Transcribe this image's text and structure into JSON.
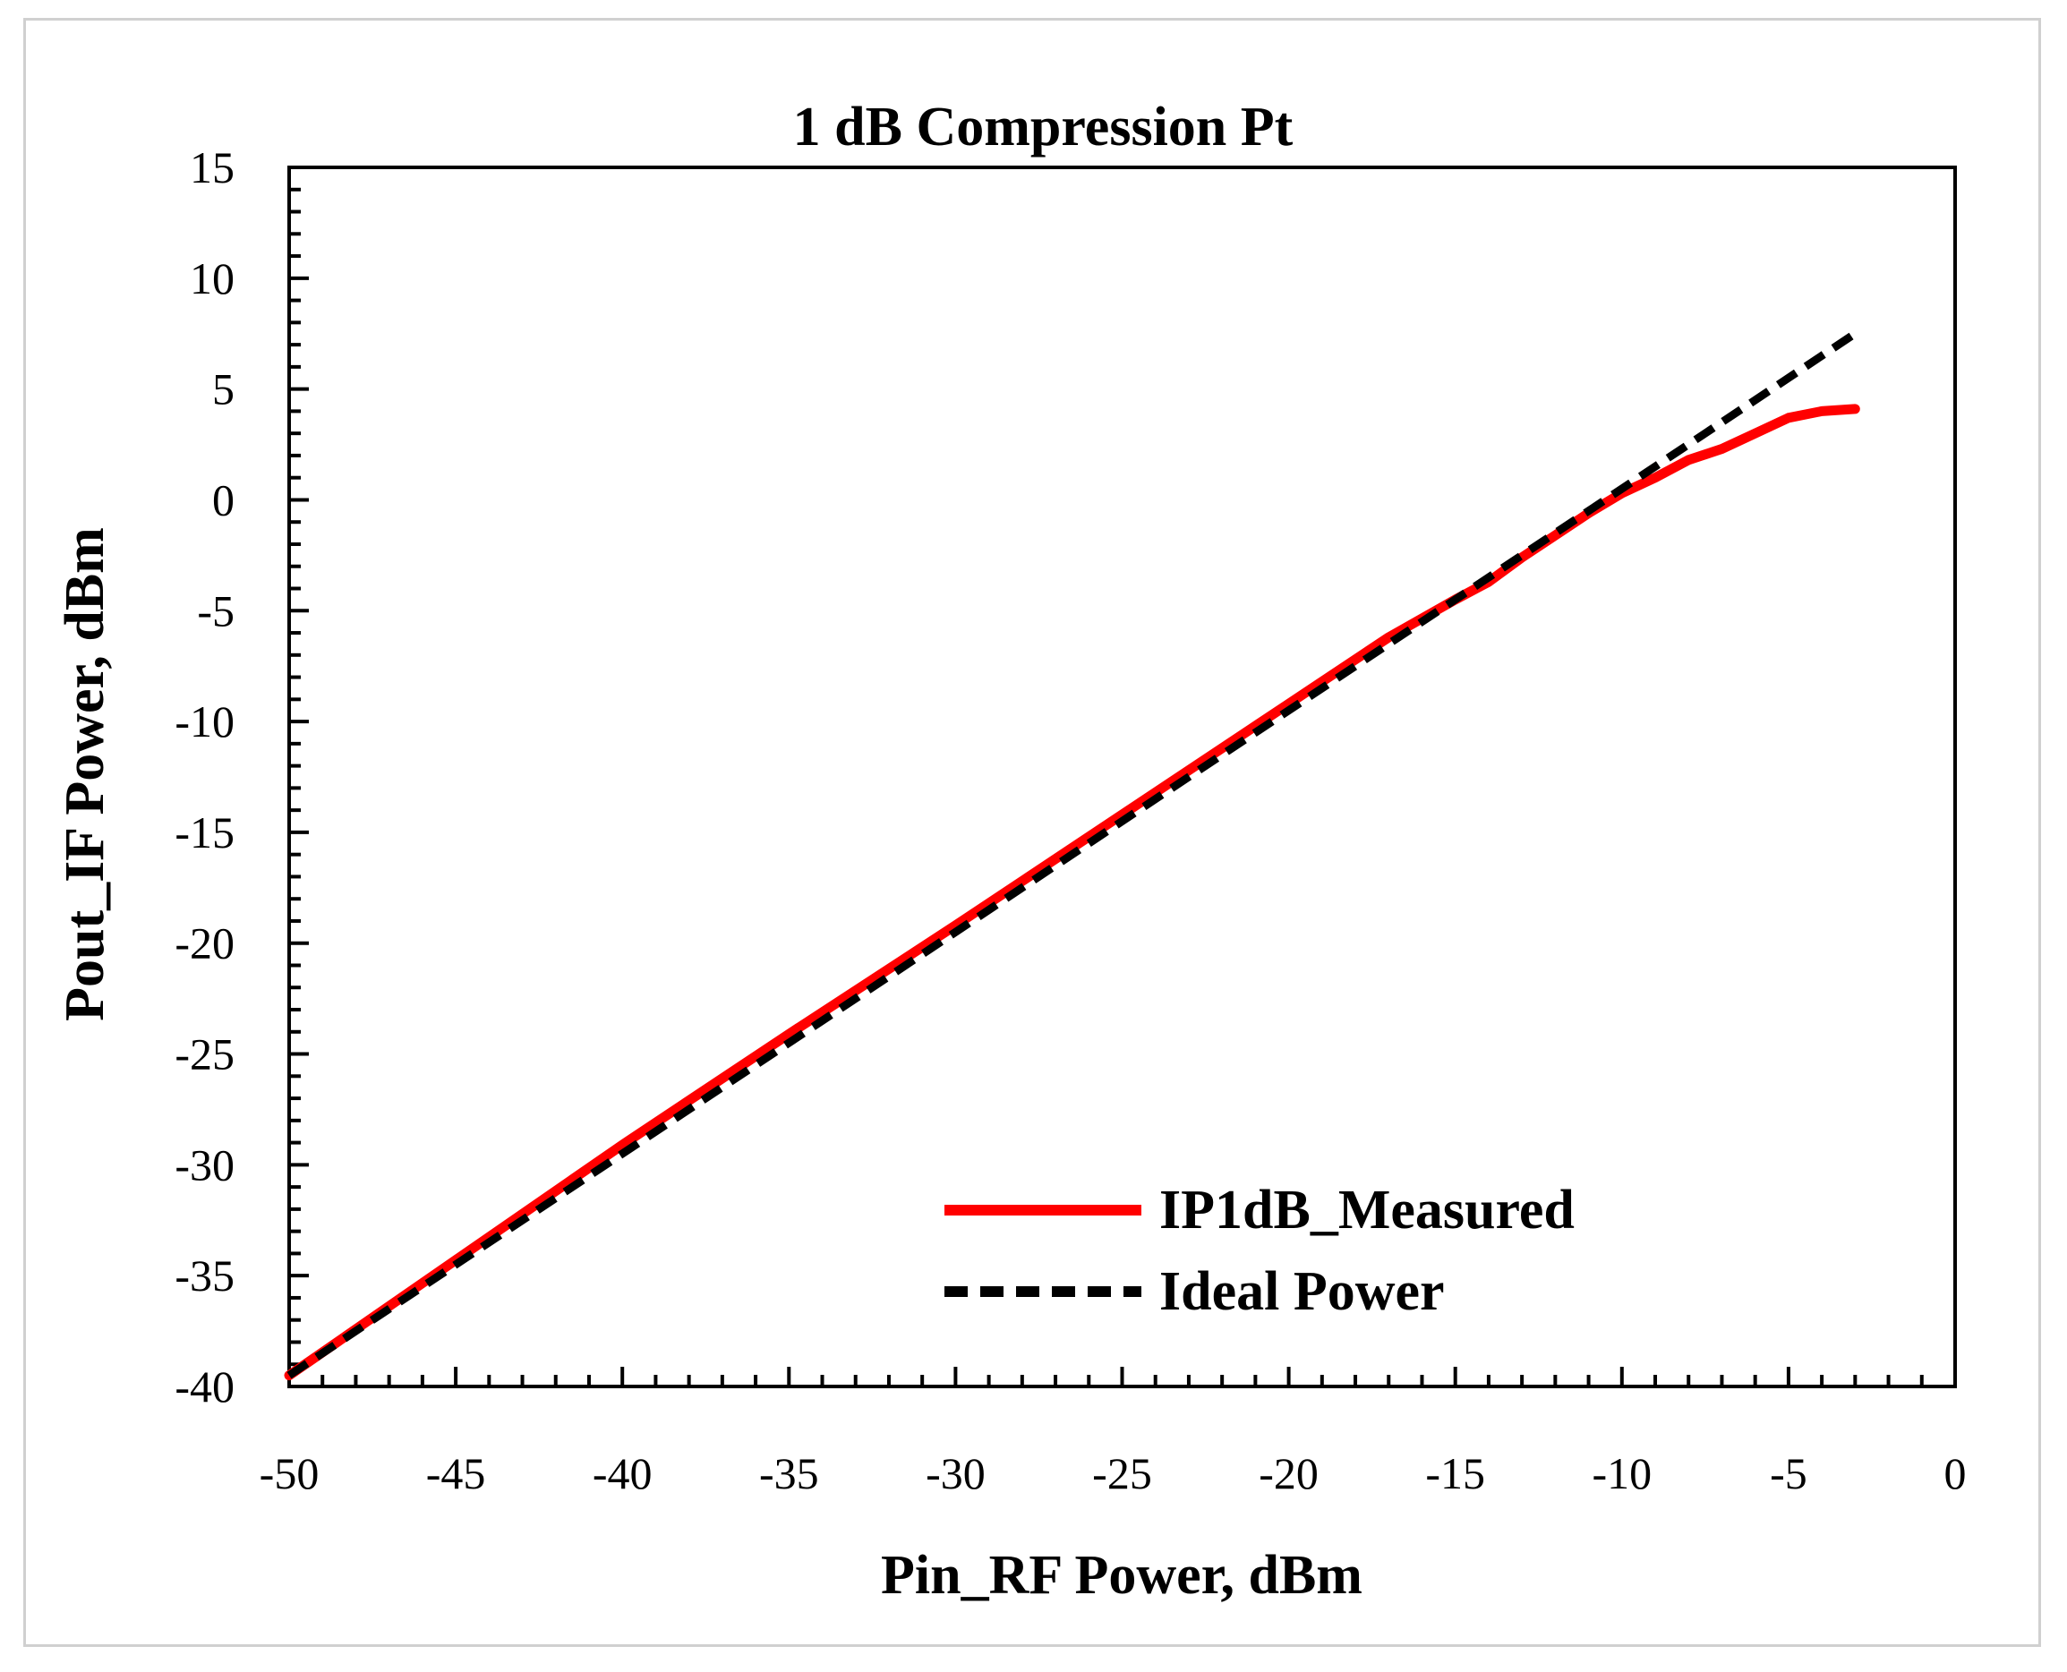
{
  "chart_data": {
    "type": "line",
    "title": "1 dB Compression Pt",
    "xlabel": "Pin_RF Power, dBm",
    "ylabel": "Pout_IF Power, dBm",
    "xlim": [
      -50,
      0
    ],
    "ylim": [
      -40,
      15
    ],
    "xticks": [
      "-50",
      "-45",
      "-40",
      "-35",
      "-30",
      "-25",
      "-20",
      "-15",
      "-10",
      "-5",
      "0"
    ],
    "yticks": [
      "15",
      "10",
      "5",
      "0",
      "-5",
      "-10",
      "-15",
      "-20",
      "-25",
      "-30",
      "-35",
      "-40"
    ],
    "grid": false,
    "legend_position": "bottom-right",
    "series": [
      {
        "name": "IP1dB_Measured",
        "color": "#ff0000",
        "style": "solid",
        "x": [
          -50,
          -45,
          -40,
          -35,
          -30,
          -25,
          -20,
          -17,
          -15,
          -14,
          -13,
          -12,
          -11,
          -10,
          -9,
          -8,
          -7,
          -6,
          -5,
          -4,
          -3
        ],
        "y": [
          -39.5,
          -34.3,
          -29.1,
          -24.1,
          -19.2,
          -14.2,
          -9.2,
          -6.2,
          -4.5,
          -3.7,
          -2.6,
          -1.6,
          -0.6,
          0.3,
          1.0,
          1.8,
          2.3,
          3.0,
          3.7,
          4.0,
          4.1
        ]
      },
      {
        "name": "Ideal Power",
        "color": "#000000",
        "style": "dashed",
        "x": [
          -50,
          -3
        ],
        "y": [
          -39.5,
          7.5
        ]
      }
    ]
  }
}
